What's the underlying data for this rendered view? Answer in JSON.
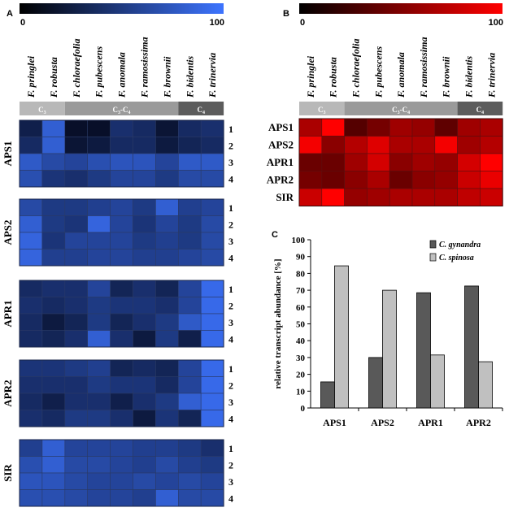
{
  "panels": {
    "a": "A",
    "b": "B",
    "c": "C"
  },
  "species": [
    "F. pringlei",
    "F. robusta",
    "F. chloraefolia",
    "F. pubescens",
    "F. anomala",
    "F. ramosissima",
    "F. brownii",
    "F. bidentis",
    "F. trinervia"
  ],
  "groups": [
    {
      "label": "C",
      "sub": "3",
      "start": 0,
      "end": 2,
      "color": "#b8b8b8"
    },
    {
      "label": "C",
      "sub": "3",
      "mid": "-C",
      "sub2": "4",
      "start": 2,
      "end": 7,
      "color": "#9a9a9a"
    },
    {
      "label": "C",
      "sub": "4",
      "start": 7,
      "end": 9,
      "color": "#5c5c5c"
    }
  ],
  "scale_a": {
    "min": "0",
    "max": "100",
    "from": "#000000",
    "to": "#3d74ff"
  },
  "scale_b": {
    "min": "0",
    "max": "100",
    "from": "#000000",
    "to": "#ff0000"
  },
  "heatmap_a": {
    "genes": [
      {
        "name": "APS1",
        "reps": [
          "1",
          "2",
          "3",
          "4"
        ],
        "values": [
          [
            20,
            80,
            5,
            5,
            35,
            30,
            10,
            30,
            35
          ],
          [
            30,
            80,
            10,
            15,
            30,
            30,
            15,
            25,
            30
          ],
          [
            75,
            60,
            55,
            65,
            70,
            70,
            55,
            75,
            75
          ],
          [
            65,
            40,
            35,
            45,
            55,
            55,
            45,
            60,
            60
          ]
        ]
      },
      {
        "name": "APS2",
        "reps": [
          "1",
          "2",
          "3",
          "4"
        ],
        "values": [
          [
            60,
            45,
            45,
            50,
            55,
            45,
            80,
            50,
            55
          ],
          [
            80,
            45,
            40,
            85,
            55,
            40,
            55,
            45,
            60
          ],
          [
            85,
            40,
            55,
            55,
            55,
            45,
            50,
            45,
            60
          ],
          [
            85,
            50,
            50,
            55,
            55,
            50,
            50,
            55,
            60
          ]
        ]
      },
      {
        "name": "APR1",
        "reps": [
          "1",
          "2",
          "3",
          "4"
        ],
        "values": [
          [
            30,
            35,
            35,
            55,
            25,
            35,
            25,
            55,
            90
          ],
          [
            35,
            30,
            35,
            45,
            40,
            40,
            35,
            55,
            90
          ],
          [
            30,
            15,
            25,
            45,
            25,
            35,
            45,
            75,
            90
          ],
          [
            30,
            25,
            35,
            80,
            35,
            15,
            45,
            20,
            90
          ]
        ]
      },
      {
        "name": "APR2",
        "reps": [
          "1",
          "2",
          "3",
          "4"
        ],
        "values": [
          [
            40,
            40,
            45,
            50,
            25,
            30,
            25,
            55,
            90
          ],
          [
            35,
            35,
            35,
            45,
            40,
            40,
            30,
            55,
            90
          ],
          [
            30,
            20,
            35,
            35,
            20,
            35,
            45,
            80,
            90
          ],
          [
            35,
            30,
            45,
            45,
            35,
            15,
            40,
            25,
            90
          ]
        ]
      },
      {
        "name": "SIR",
        "reps": [
          "1",
          "2",
          "3",
          "4"
        ],
        "values": [
          [
            50,
            80,
            55,
            55,
            55,
            50,
            50,
            45,
            35
          ],
          [
            65,
            80,
            60,
            60,
            55,
            50,
            60,
            50,
            45
          ],
          [
            70,
            70,
            60,
            55,
            55,
            60,
            55,
            60,
            55
          ],
          [
            65,
            65,
            60,
            55,
            55,
            50,
            80,
            60,
            60
          ]
        ]
      }
    ]
  },
  "heatmap_b": {
    "genes": [
      "APS1",
      "APS2",
      "APR1",
      "APR2",
      "SIR"
    ],
    "values": [
      [
        60,
        100,
        20,
        35,
        55,
        50,
        25,
        55,
        60
      ],
      [
        95,
        45,
        65,
        85,
        60,
        60,
        95,
        55,
        65
      ],
      [
        30,
        30,
        55,
        80,
        45,
        55,
        50,
        80,
        100
      ],
      [
        35,
        30,
        45,
        60,
        30,
        45,
        50,
        75,
        90
      ],
      [
        75,
        100,
        50,
        55,
        60,
        60,
        60,
        70,
        75
      ]
    ]
  },
  "chart_data": {
    "type": "bar",
    "title": "",
    "categories": [
      "APS1",
      "APS2",
      "APR1",
      "APR2"
    ],
    "series": [
      {
        "name": "C. gynandra",
        "values": [
          15.5,
          30,
          68.5,
          72.5
        ],
        "color": "#595959"
      },
      {
        "name": "C. spinosa",
        "values": [
          84.5,
          70,
          31.5,
          27.5
        ],
        "color": "#c0c0c0"
      }
    ],
    "xlabel": "",
    "ylabel": "relative transcript abundance [%]",
    "ylim": [
      0,
      100
    ],
    "yticks": [
      "0",
      "10",
      "20",
      "30",
      "40",
      "50",
      "60",
      "70",
      "80",
      "90",
      "100"
    ],
    "legend": "top-right"
  }
}
